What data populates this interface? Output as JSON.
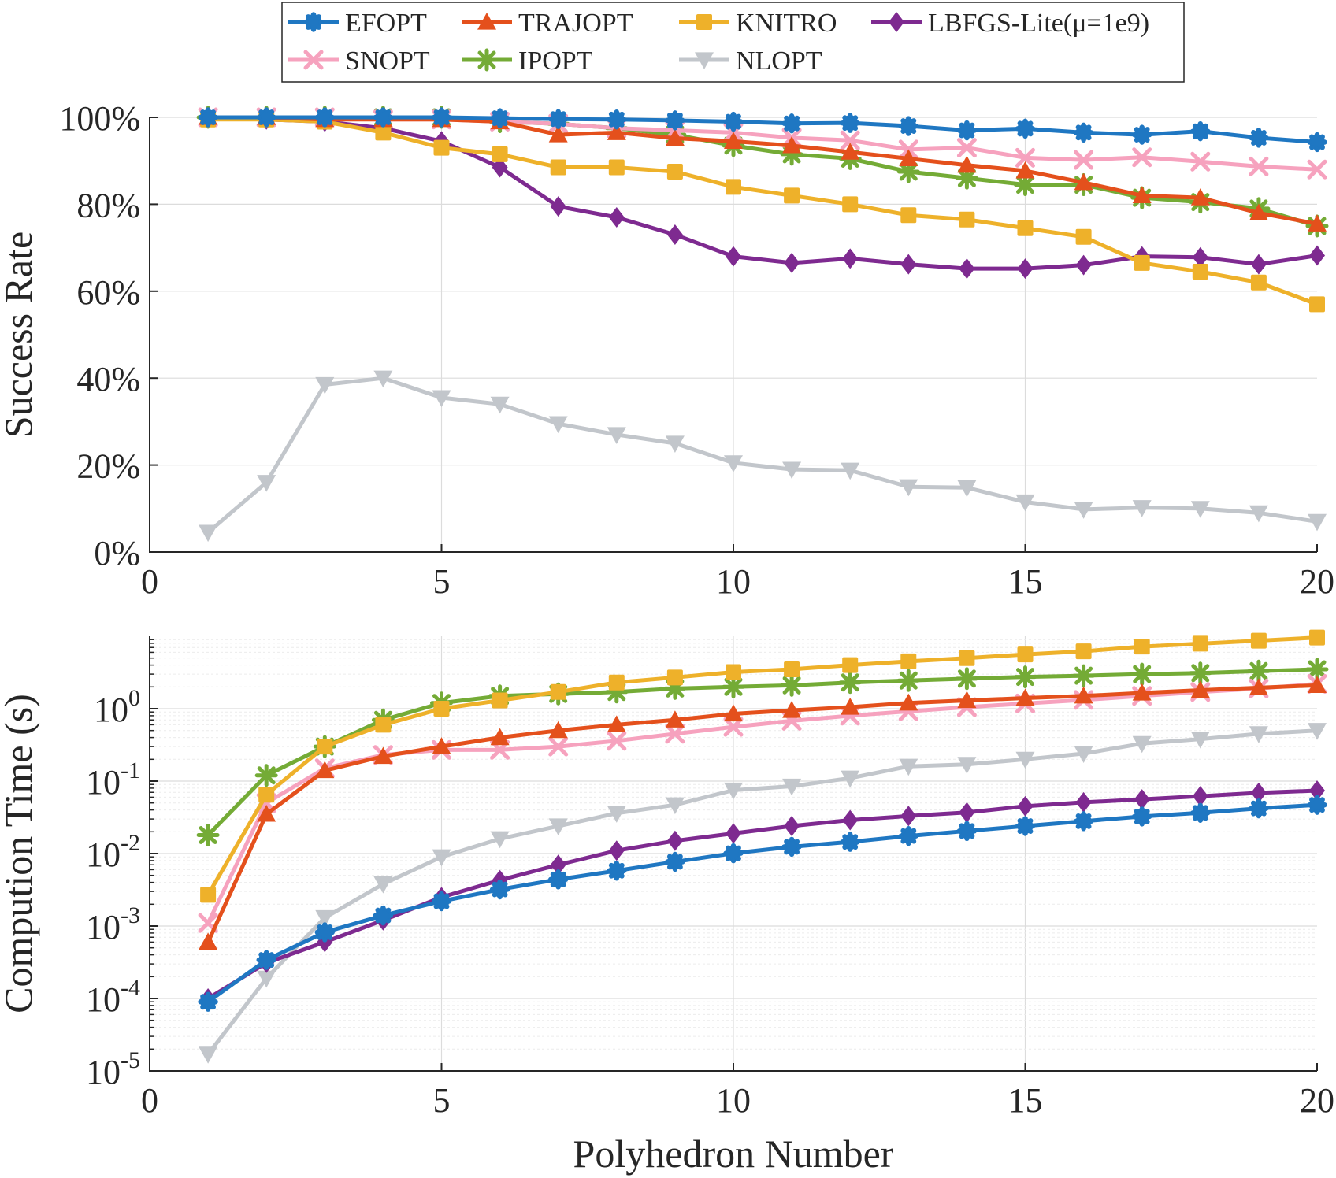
{
  "chart_data": [
    {
      "type": "line",
      "ylabel": "Success Rate",
      "xlabel": "",
      "xlim": [
        0,
        20
      ],
      "ylim": [
        0,
        100
      ],
      "yscale": "linear",
      "xticks": [
        "0",
        "5",
        "10",
        "15",
        "20"
      ],
      "yticks": [
        "0%",
        "20%",
        "40%",
        "60%",
        "80%",
        "100%"
      ],
      "x": [
        1,
        2,
        3,
        4,
        5,
        6,
        7,
        8,
        9,
        10,
        11,
        12,
        13,
        14,
        15,
        16,
        17,
        18,
        19,
        20
      ],
      "series": [
        {
          "name": "EFOPT",
          "color": "#1f77c2",
          "marker": "circle",
          "values": [
            100,
            100,
            100,
            100,
            100,
            99.8,
            99.6,
            99.5,
            99.3,
            99,
            98.6,
            98.7,
            98,
            97,
            97.4,
            96.5,
            96,
            96.8,
            95.3,
            94.3
          ]
        },
        {
          "name": "TRAJOPT",
          "color": "#e4501c",
          "marker": "triangle-up",
          "values": [
            100,
            100,
            99.5,
            99.5,
            99.5,
            99,
            96,
            96.5,
            95.2,
            94.5,
            93.5,
            92,
            90.5,
            89,
            87.7,
            85,
            82,
            81.5,
            78,
            75.5
          ]
        },
        {
          "name": "KNITRO",
          "color": "#eeb12a",
          "marker": "square",
          "values": [
            99.5,
            99.5,
            99,
            96.5,
            93,
            91.5,
            88.5,
            88.5,
            87.5,
            84,
            82,
            80,
            77.5,
            76.5,
            74.5,
            72.5,
            66.5,
            64.5,
            62,
            57
          ]
        },
        {
          "name": "LBFGS-Lite(μ=1e9)",
          "color": "#7e2a90",
          "marker": "diamond",
          "values": [
            100,
            99.5,
            99,
            97.5,
            94.5,
            88.5,
            79.5,
            77,
            73,
            68,
            66.5,
            67.5,
            66.2,
            65.2,
            65.2,
            66,
            68,
            67.8,
            66.2,
            68.2
          ]
        },
        {
          "name": "SNOPT",
          "color": "#f6a2be",
          "marker": "x",
          "values": [
            100,
            100,
            100,
            99.5,
            99.5,
            99,
            98.5,
            97.5,
            97,
            96.5,
            95.3,
            94.7,
            92.6,
            93,
            90.7,
            90.2,
            90.8,
            89.8,
            88.7,
            88
          ]
        },
        {
          "name": "IPOPT",
          "color": "#74ab36",
          "marker": "asterisk",
          "values": [
            100,
            100,
            100,
            100,
            100,
            99,
            98.5,
            97.5,
            96,
            93.5,
            91.5,
            90.5,
            87.5,
            86,
            84.5,
            84.5,
            81.5,
            80.5,
            79,
            75
          ]
        },
        {
          "name": "NLOPT",
          "color": "#c2c6cb",
          "marker": "triangle-down",
          "values": [
            4.5,
            16,
            38.5,
            40,
            35.5,
            34,
            29.5,
            27,
            25,
            20.5,
            19,
            18.8,
            15,
            14.8,
            11.5,
            9.8,
            10.2,
            10,
            9,
            7
          ]
        }
      ]
    },
    {
      "type": "line",
      "ylabel": "Compution Time (s)",
      "xlabel": "Polyhedron Number",
      "xlim": [
        0,
        20
      ],
      "ylim": [
        1e-05,
        10
      ],
      "yscale": "log",
      "xticks": [
        "0",
        "5",
        "10",
        "15",
        "20"
      ],
      "yticks": [
        "-5",
        "-4",
        "-3",
        "-2",
        "-1",
        "0"
      ],
      "ytick_base": "10",
      "x": [
        1,
        2,
        3,
        4,
        5,
        6,
        7,
        8,
        9,
        10,
        11,
        12,
        13,
        14,
        15,
        16,
        17,
        18,
        19,
        20
      ],
      "series": [
        {
          "name": "EFOPT",
          "color": "#1f77c2",
          "marker": "circle",
          "values": [
            9e-05,
            0.00034,
            0.00082,
            0.0014,
            0.0022,
            0.0032,
            0.0044,
            0.0058,
            0.0077,
            0.0101,
            0.0124,
            0.0145,
            0.0175,
            0.0205,
            0.024,
            0.028,
            0.0325,
            0.0365,
            0.042,
            0.047
          ]
        },
        {
          "name": "TRAJOPT",
          "color": "#e4501c",
          "marker": "triangle-up",
          "values": [
            0.0006,
            0.035,
            0.14,
            0.22,
            0.3,
            0.4,
            0.5,
            0.6,
            0.7,
            0.85,
            0.95,
            1.05,
            1.2,
            1.3,
            1.4,
            1.5,
            1.65,
            1.8,
            1.95,
            2.1
          ]
        },
        {
          "name": "KNITRO",
          "color": "#eeb12a",
          "marker": "square",
          "values": [
            0.0027,
            0.065,
            0.3,
            0.6,
            1.0,
            1.3,
            1.7,
            2.3,
            2.7,
            3.2,
            3.5,
            4.0,
            4.5,
            5.0,
            5.6,
            6.2,
            7.2,
            7.9,
            8.7,
            9.6
          ]
        },
        {
          "name": "LBFGS-Lite(μ=1e9)",
          "color": "#7e2a90",
          "marker": "diamond",
          "values": [
            0.0001,
            0.00031,
            0.0006,
            0.0012,
            0.0025,
            0.0043,
            0.007,
            0.011,
            0.015,
            0.019,
            0.024,
            0.029,
            0.033,
            0.037,
            0.045,
            0.051,
            0.056,
            0.062,
            0.069,
            0.074
          ]
        },
        {
          "name": "SNOPT",
          "color": "#f6a2be",
          "marker": "x",
          "values": [
            0.0011,
            0.05,
            0.15,
            0.23,
            0.27,
            0.27,
            0.3,
            0.36,
            0.45,
            0.56,
            0.68,
            0.8,
            0.92,
            1.05,
            1.18,
            1.32,
            1.5,
            1.7,
            1.9,
            2.2
          ]
        },
        {
          "name": "IPOPT",
          "color": "#74ab36",
          "marker": "asterisk",
          "values": [
            0.018,
            0.12,
            0.3,
            0.7,
            1.2,
            1.5,
            1.6,
            1.7,
            1.9,
            2.0,
            2.1,
            2.3,
            2.45,
            2.6,
            2.75,
            2.85,
            3.0,
            3.1,
            3.3,
            3.5
          ]
        },
        {
          "name": "NLOPT",
          "color": "#c2c6cb",
          "marker": "triangle-down",
          "values": [
            1.7e-05,
            0.00019,
            0.0013,
            0.0038,
            0.009,
            0.016,
            0.024,
            0.036,
            0.047,
            0.075,
            0.085,
            0.11,
            0.16,
            0.17,
            0.2,
            0.24,
            0.33,
            0.38,
            0.45,
            0.5
          ]
        }
      ]
    }
  ],
  "legend": {
    "placement": "top-center",
    "entries": [
      {
        "label": "EFOPT",
        "color": "#1f77c2",
        "marker": "circle"
      },
      {
        "label": "TRAJOPT",
        "color": "#e4501c",
        "marker": "triangle-up"
      },
      {
        "label": "KNITRO",
        "color": "#eeb12a",
        "marker": "square"
      },
      {
        "label": "LBFGS-Lite(μ=1e9)",
        "color": "#7e2a90",
        "marker": "diamond"
      },
      {
        "label": "SNOPT",
        "color": "#f6a2be",
        "marker": "x"
      },
      {
        "label": "IPOPT",
        "color": "#74ab36",
        "marker": "asterisk"
      },
      {
        "label": "NLOPT",
        "color": "#c2c6cb",
        "marker": "triangle-down"
      }
    ]
  }
}
